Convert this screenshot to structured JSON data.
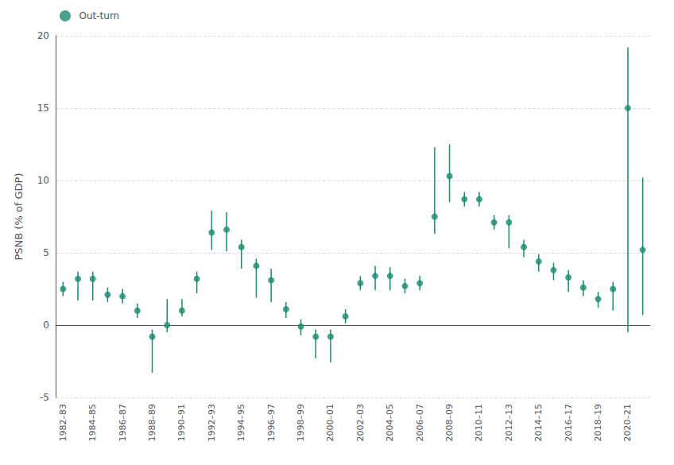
{
  "chart_data": {
    "type": "scatter",
    "ylabel": "PSNB (% of GDP)",
    "categories": [
      "1982–83",
      null,
      "1984–85",
      null,
      "1986–87",
      null,
      "1988–89",
      null,
      "1990–91",
      null,
      "1992–93",
      null,
      "1994–95",
      null,
      "1996–97",
      null,
      "1998–99",
      null,
      "2000–01",
      null,
      "2002–03",
      null,
      "2004–05",
      null,
      "2006–07",
      null,
      "2008–09",
      null,
      "2010–11",
      null,
      "2012–13",
      null,
      "2014–15",
      null,
      "2016–17",
      null,
      "2018–19",
      null,
      "2020–21",
      null
    ],
    "series": [
      {
        "name": "Out-turn",
        "color": "#1a8a6e",
        "values": [
          2.5,
          3.2,
          3.2,
          2.1,
          2.0,
          1.0,
          -0.8,
          0.0,
          1.0,
          3.2,
          6.4,
          6.6,
          5.4,
          4.1,
          3.1,
          1.1,
          -0.1,
          -0.8,
          -0.8,
          0.6,
          2.9,
          3.4,
          3.4,
          2.7,
          2.9,
          7.5,
          10.3,
          8.7,
          8.7,
          7.1,
          7.1,
          5.4,
          4.4,
          3.8,
          3.3,
          2.6,
          1.8,
          2.5,
          15.0,
          5.2
        ],
        "err_low": [
          0.5,
          1.5,
          1.5,
          0.5,
          0.5,
          0.5,
          2.5,
          0.5,
          0.4,
          1.0,
          1.2,
          1.5,
          1.5,
          2.2,
          1.5,
          0.6,
          0.6,
          1.5,
          1.8,
          0.5,
          0.5,
          1.0,
          1.0,
          0.5,
          0.5,
          1.2,
          1.8,
          0.5,
          0.5,
          0.5,
          1.8,
          0.7,
          0.7,
          0.7,
          1.0,
          0.6,
          0.6,
          1.5,
          15.5,
          4.5
        ],
        "err_high": [
          0.5,
          0.5,
          0.5,
          0.5,
          0.5,
          0.5,
          0.5,
          1.8,
          0.8,
          0.5,
          1.5,
          1.2,
          0.5,
          0.5,
          0.8,
          0.5,
          0.5,
          0.5,
          0.5,
          0.5,
          0.5,
          0.7,
          0.6,
          0.5,
          0.5,
          4.8,
          2.2,
          0.5,
          0.5,
          0.5,
          0.5,
          0.5,
          0.5,
          0.5,
          0.5,
          0.5,
          0.5,
          0.5,
          4.2,
          5.0
        ]
      }
    ],
    "ylim": [
      -5,
      20
    ],
    "yticks": [
      -5,
      0,
      5,
      10,
      15,
      20
    ],
    "grid": true,
    "legend": "upper left"
  }
}
